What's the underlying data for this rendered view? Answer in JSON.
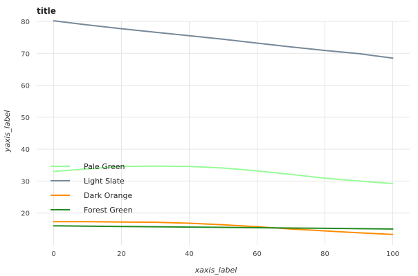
{
  "chart_data": {
    "type": "line",
    "title": "title",
    "xlabel": "xaxis_label",
    "ylabel": "yaxis_label",
    "xlim": [
      -5,
      105
    ],
    "ylim": [
      10,
      80
    ],
    "x_ticks": [
      0,
      20,
      40,
      60,
      80,
      100
    ],
    "y_ticks": [
      20,
      30,
      40,
      50,
      60,
      70,
      80
    ],
    "grid": true,
    "legend_position": "left",
    "x": [
      0,
      10,
      20,
      30,
      40,
      50,
      60,
      70,
      80,
      90,
      100
    ],
    "series": [
      {
        "name": "Pale Green",
        "color": "#98fb98",
        "values": [
          33.0,
          33.8,
          34.6,
          34.7,
          34.6,
          34.1,
          33.2,
          32.1,
          30.9,
          30.0,
          29.2
        ]
      },
      {
        "name": "Light Slate",
        "color": "#778899",
        "values": [
          80.2,
          78.9,
          77.7,
          76.6,
          75.5,
          74.4,
          73.2,
          72.0,
          70.9,
          69.9,
          68.5
        ]
      },
      {
        "name": "Dark Orange",
        "color": "#ff8c00",
        "values": [
          17.3,
          17.3,
          17.2,
          17.1,
          16.8,
          16.3,
          15.7,
          15.0,
          14.4,
          13.8,
          13.3
        ]
      },
      {
        "name": "Forest Green",
        "color": "#228b22",
        "values": [
          16.0,
          15.9,
          15.8,
          15.7,
          15.6,
          15.5,
          15.4,
          15.3,
          15.2,
          15.1,
          15.0
        ]
      }
    ]
  }
}
